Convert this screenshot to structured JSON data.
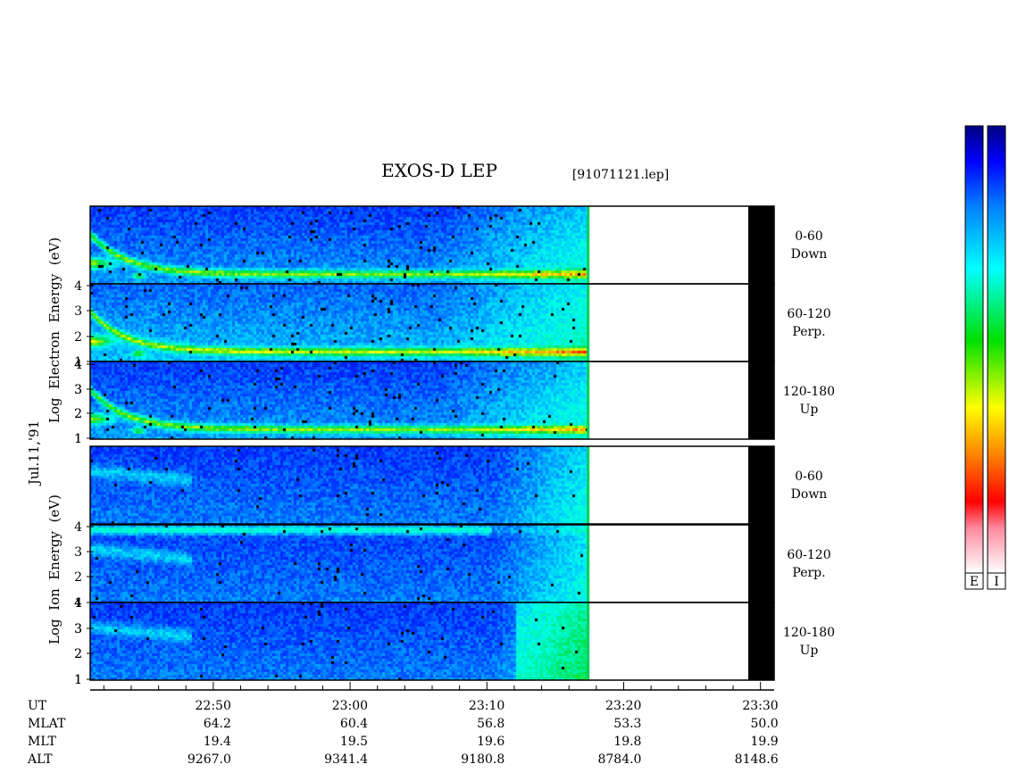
{
  "chart_data": {
    "type": "heatmap",
    "title": "EXOS-D LEP",
    "file_label": "[91071121.lep]",
    "date_label": "Jul.11,'91",
    "electron_ylabel": [
      "Log",
      "Electron",
      "Energy",
      "(eV)"
    ],
    "ion_ylabel": [
      "Log",
      "Ion",
      "Energy",
      "(eV)"
    ],
    "y_ticks": [
      "1",
      "2",
      "3",
      "4"
    ],
    "ylim": [
      1,
      4.2
    ],
    "x_time_range": [
      "22:41",
      "23:31"
    ],
    "data_end_time": "23:17:30",
    "panels": [
      {
        "species": "Electron",
        "angle": "0-60",
        "direction": "Down"
      },
      {
        "species": "Electron",
        "angle": "60-120",
        "direction": "Perp."
      },
      {
        "species": "Electron",
        "angle": "120-180",
        "direction": "Up"
      },
      {
        "species": "Ion",
        "angle": "0-60",
        "direction": "Down"
      },
      {
        "species": "Ion",
        "angle": "60-120",
        "direction": "Perp."
      },
      {
        "species": "Ion",
        "angle": "120-180",
        "direction": "Up"
      }
    ],
    "colorbars": {
      "labels": [
        "E",
        "I"
      ],
      "colors": [
        "#ffffff",
        "#ff8aa0",
        "#ff0000",
        "#ff8a00",
        "#ffff00",
        "#00e000",
        "#00ffff",
        "#0080ff",
        "#0000ff",
        "#000080"
      ]
    },
    "orbit_table": {
      "row_labels": [
        "UT",
        "MLAT",
        "MLT",
        "ALT"
      ],
      "columns": [
        {
          "UT": "22:50",
          "MLAT": "64.2",
          "MLT": "19.4",
          "ALT": "9267.0"
        },
        {
          "UT": "23:00",
          "MLAT": "60.4",
          "MLT": "19.5",
          "ALT": "9341.4"
        },
        {
          "UT": "23:10",
          "MLAT": "56.8",
          "MLT": "19.6",
          "ALT": "9180.8"
        },
        {
          "UT": "23:20",
          "MLAT": "53.3",
          "MLT": "19.8",
          "ALT": "8784.0"
        },
        {
          "UT": "23:30",
          "MLAT": "50.0",
          "MLT": "19.9",
          "ALT": "8148.6"
        }
      ]
    }
  }
}
